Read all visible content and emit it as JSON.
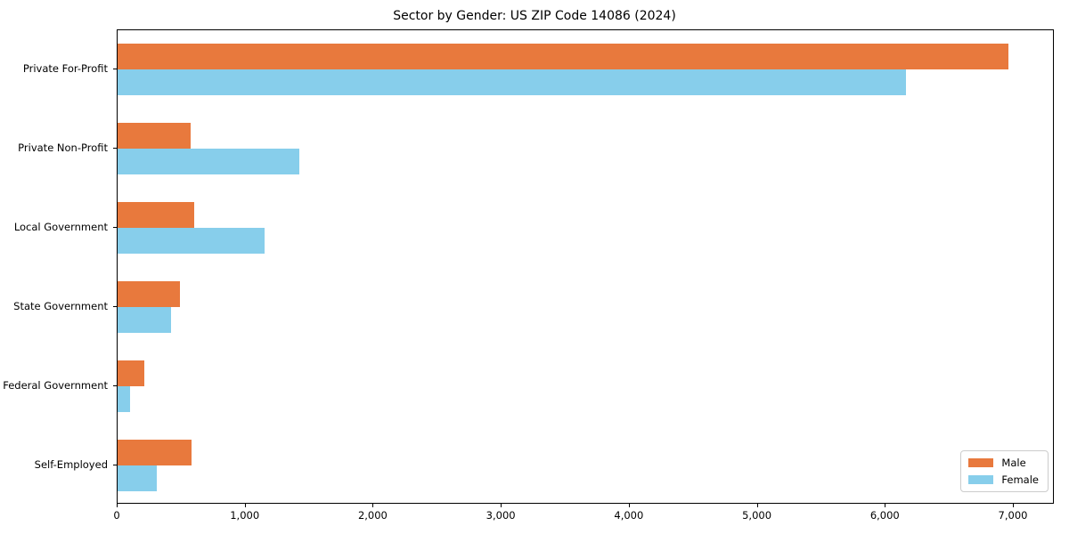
{
  "title": "Sector by Gender: US ZIP Code 14086 (2024)",
  "colors": {
    "male": "#e8793d",
    "female": "#87ceeb",
    "spine": "#000000",
    "legend_border": "#cccccc",
    "background": "#ffffff"
  },
  "chart_data": {
    "type": "bar",
    "orientation": "horizontal",
    "title": "Sector by Gender: US ZIP Code 14086 (2024)",
    "categories": [
      "Private For-Profit",
      "Private Non-Profit",
      "Local Government",
      "State Government",
      "Federal Government",
      "Self-Employed"
    ],
    "series": [
      {
        "name": "Male",
        "color": "#e8793d",
        "values": [
          6970,
          570,
          600,
          490,
          210,
          580
        ]
      },
      {
        "name": "Female",
        "color": "#87ceeb",
        "values": [
          6170,
          1420,
          1150,
          420,
          100,
          310
        ]
      }
    ],
    "xlim": [
      0,
      7320
    ],
    "x_ticks": [
      0,
      1000,
      2000,
      3000,
      4000,
      5000,
      6000,
      7000
    ],
    "x_tick_labels": [
      "0",
      "1,000",
      "2,000",
      "3,000",
      "4,000",
      "5,000",
      "6,000",
      "7,000"
    ],
    "xlabel": "",
    "ylabel": "",
    "grid": false,
    "legend_position": "lower right",
    "legend_items": [
      "Male",
      "Female"
    ]
  }
}
